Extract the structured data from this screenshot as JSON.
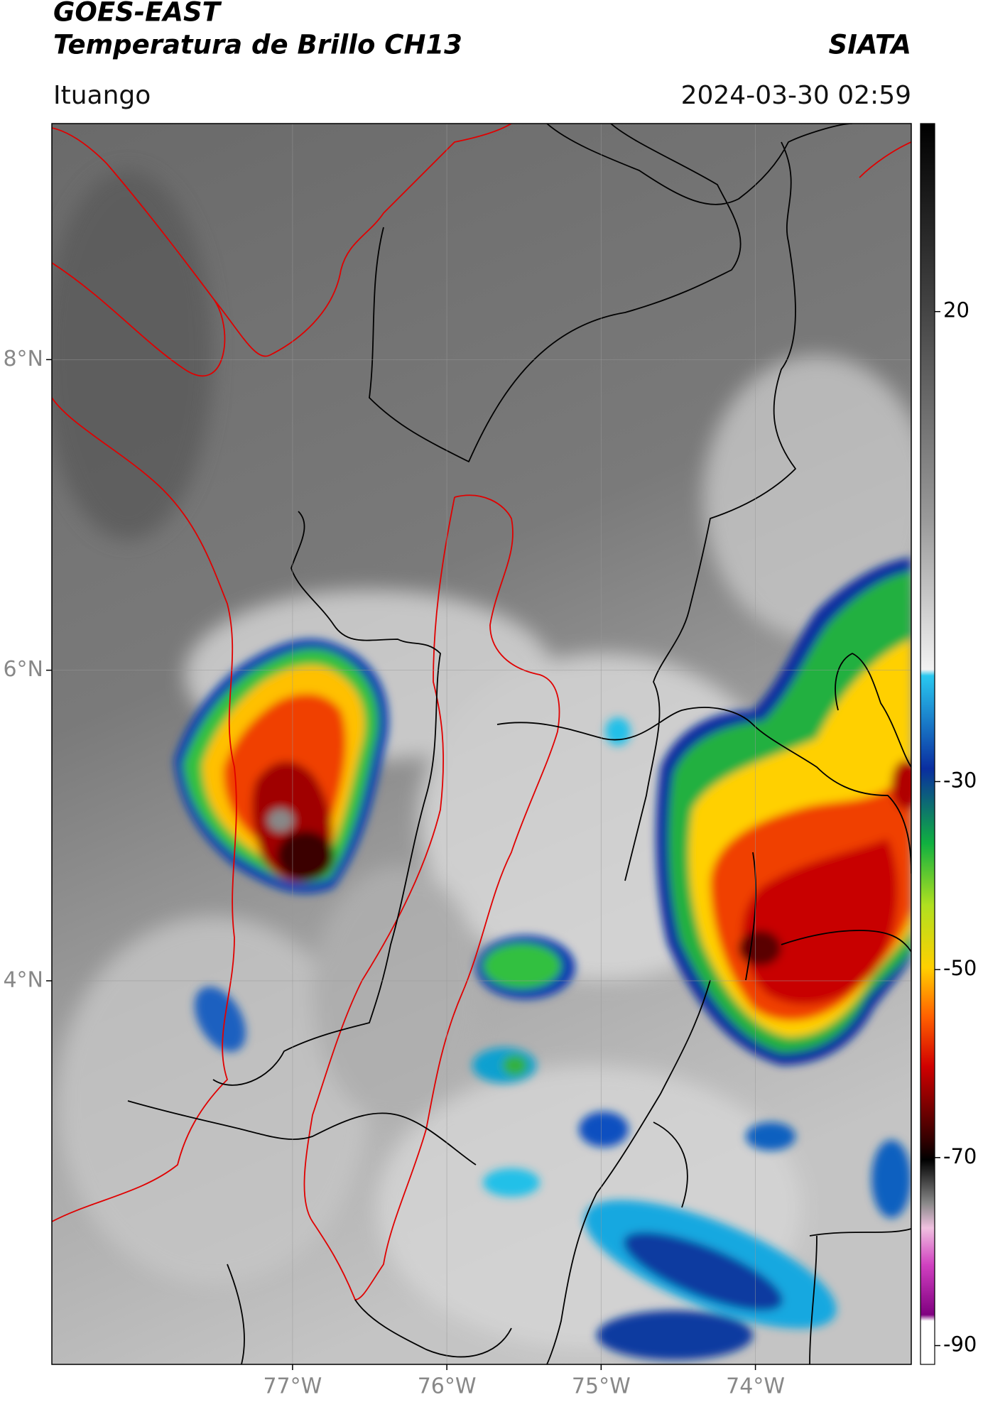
{
  "header": {
    "title": "GOES-EAST",
    "subtitle": "Temperatura de Brillo CH13",
    "source": "SIATA",
    "location": "Ituango",
    "datetime": "2024-03-30 02:59"
  },
  "map": {
    "lat_range": [
      1.53,
      9.52
    ],
    "lon_range": [
      -78.56,
      -72.99
    ],
    "lat_ticks": [
      {
        "value": 8,
        "label": "8°N"
      },
      {
        "value": 6,
        "label": "6°N"
      },
      {
        "value": 4,
        "label": "4°N"
      }
    ],
    "lon_ticks": [
      {
        "value": -77,
        "label": "77°W"
      },
      {
        "value": -76,
        "label": "76°W"
      },
      {
        "value": -75,
        "label": "75°W"
      },
      {
        "value": -74,
        "label": "74°W"
      }
    ]
  },
  "colorbar": {
    "clim": [
      -92,
      40
    ],
    "ticks": [
      20,
      -30,
      -50,
      -70,
      -90
    ]
  }
}
